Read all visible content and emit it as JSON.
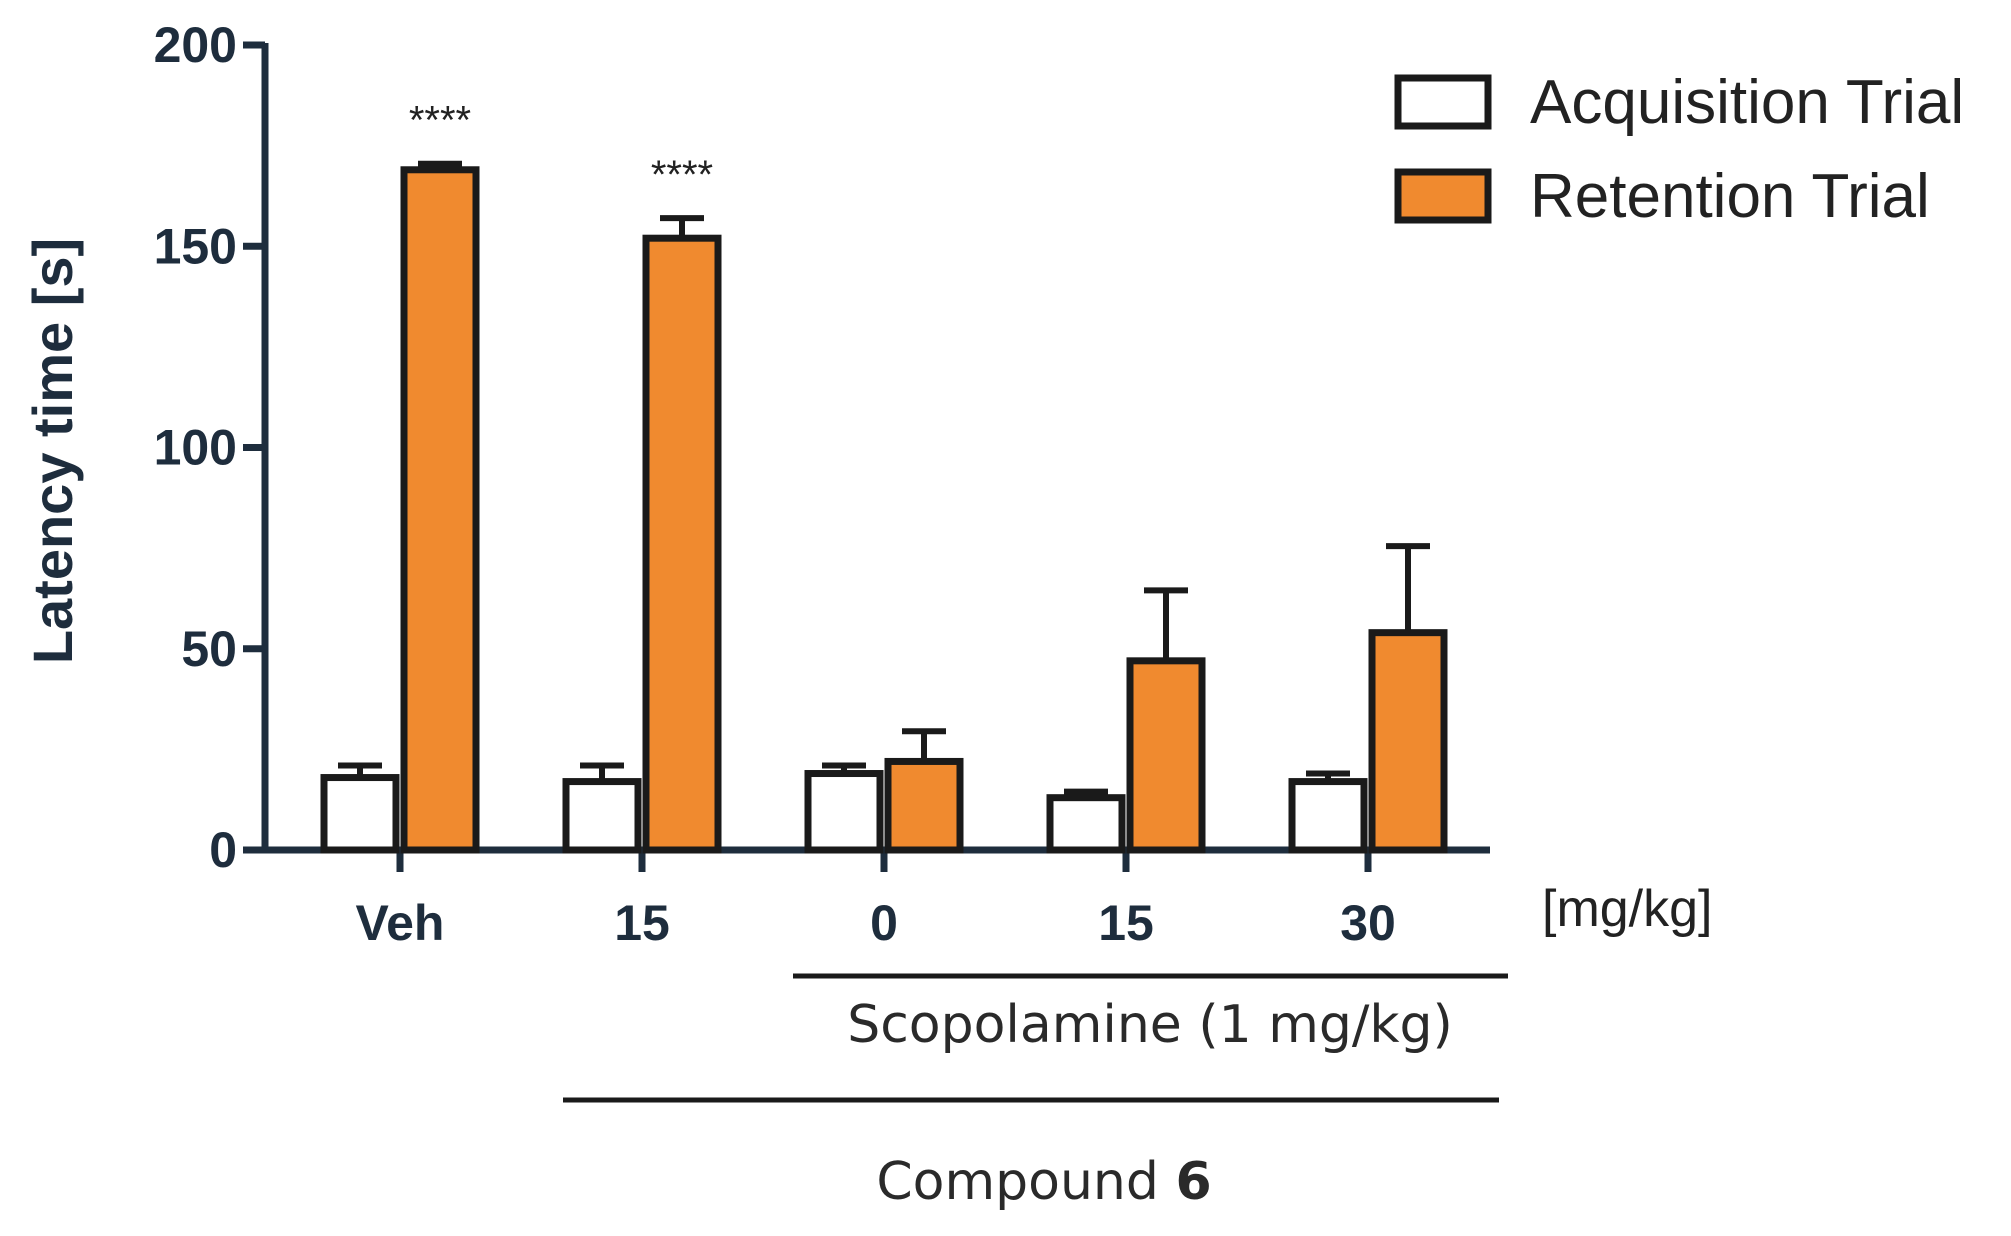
{
  "chart_data": {
    "type": "bar",
    "title": "",
    "ylabel": "Latency time [s]",
    "xlabel": "",
    "x_unit_label": "[mg/kg]",
    "ylim": [
      0,
      200
    ],
    "yticks": [
      0,
      50,
      100,
      150,
      200
    ],
    "categories": [
      "Veh",
      "15",
      "0",
      "15",
      "30"
    ],
    "series": [
      {
        "name": "Acquisition Trial",
        "color": "#ffffff",
        "values": [
          18,
          17,
          19,
          13,
          17
        ],
        "errors": [
          3,
          4,
          2,
          1.5,
          2
        ]
      },
      {
        "name": "Retention Trial",
        "color": "#f08a2f",
        "values": [
          169,
          152,
          22,
          47,
          54
        ],
        "errors": [
          1.5,
          5,
          7.5,
          17.5,
          21.5
        ]
      }
    ],
    "significance": [
      "****",
      "****",
      "",
      "",
      ""
    ],
    "legend_position": "top-right",
    "group_labels": {
      "scopolamine": "Scopolamine (1 mg/kg)",
      "compound_prefix": "Compound ",
      "compound_number": "6"
    }
  },
  "colors": {
    "axis": "#1e2d3d",
    "bar_outline": "#1a1a1a",
    "retention_fill": "#f08a2f",
    "acquisition_fill": "#ffffff"
  }
}
